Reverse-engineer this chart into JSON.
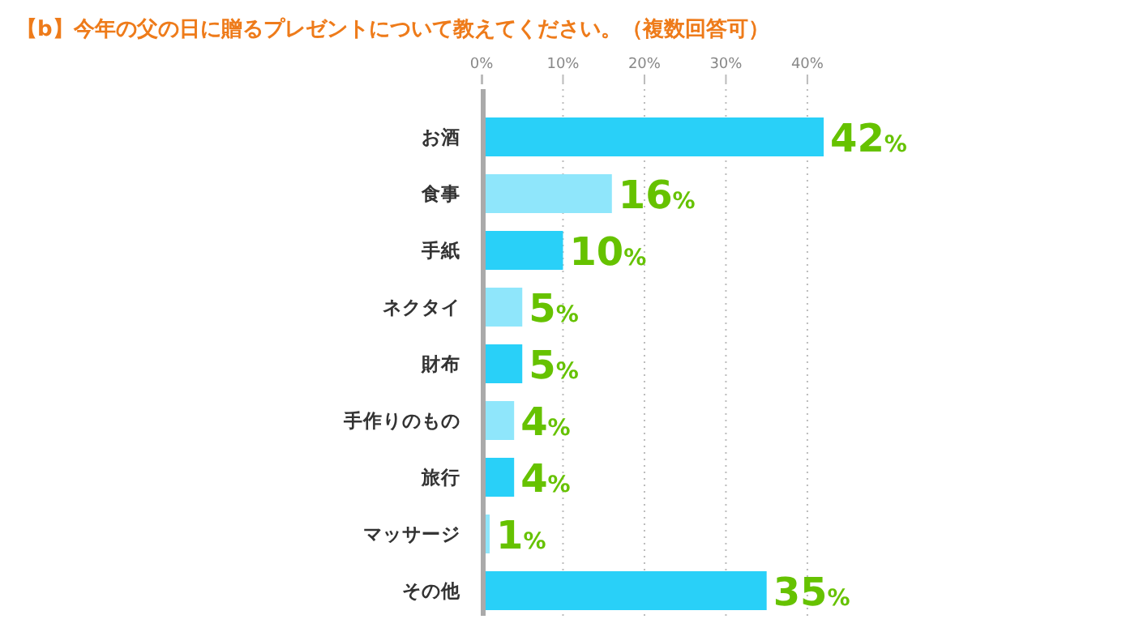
{
  "chart_data": {
    "type": "bar",
    "orientation": "horizontal",
    "title": "【b】今年の父の日に贈るプレゼントについて教えてください。（複数回答可）",
    "categories": [
      "お酒",
      "食事",
      "手紙",
      "ネクタイ",
      "財布",
      "手作りのもの",
      "旅行",
      "マッサージ",
      "その他"
    ],
    "values": [
      42,
      16,
      10,
      5,
      5,
      4,
      4,
      1,
      35
    ],
    "colors": [
      "#29d0f8",
      "#8fe6fb",
      "#29d0f8",
      "#8fe6fb",
      "#29d0f8",
      "#8fe6fb",
      "#29d0f8",
      "#8fe6fb",
      "#29d0f8"
    ],
    "value_labels": [
      "42%",
      "16%",
      "10%",
      "5%",
      "5%",
      "4%",
      "4%",
      "1%",
      "35%"
    ],
    "xlim": [
      0,
      42
    ],
    "xticks": [
      {
        "value": 0,
        "label": "0%"
      },
      {
        "value": 10,
        "label": "10%"
      },
      {
        "value": 20,
        "label": "20%"
      },
      {
        "value": 30,
        "label": "30%"
      },
      {
        "value": 40,
        "label": "40%"
      }
    ],
    "grid": "x"
  }
}
